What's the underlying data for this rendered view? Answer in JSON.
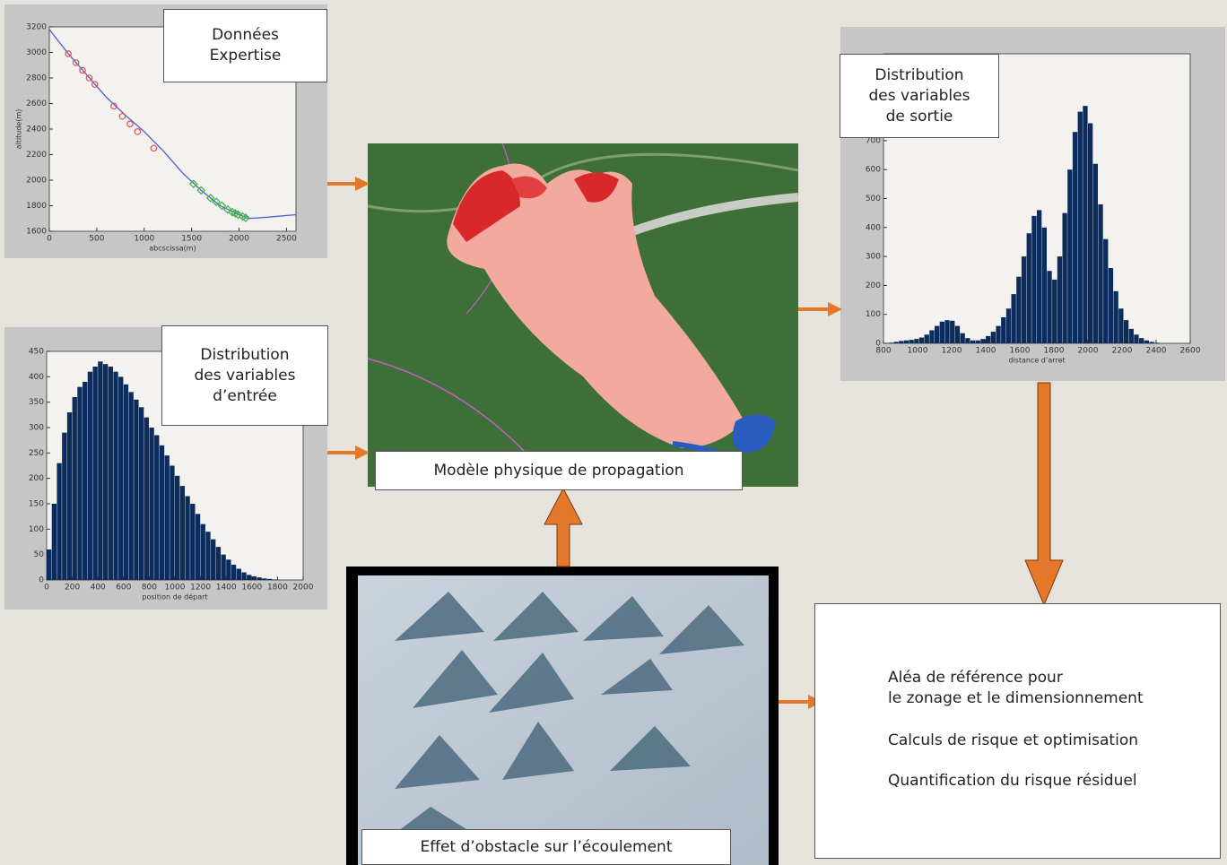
{
  "expertise_box": [
    "Données",
    "Expertise"
  ],
  "input_box": [
    "Distribution",
    "des variables",
    "d’entrée"
  ],
  "output_box": [
    "Distribution",
    "des variables",
    "de sortie"
  ],
  "model_label": "Modèle physique de propagation",
  "obstacle_label": "Effet d’obstacle sur l’écoulement",
  "results": [
    "Aléa de référence pour",
    "le zonage et le dimensionnement",
    "Calculs de risque et optimisation",
    "Quantification du risque résiduel"
  ],
  "charts": [
    {
      "type": "line",
      "xlabel": "abcscissa(m)",
      "ylabel": "altitude(m)",
      "xlim": [
        0,
        2600
      ],
      "ylim": [
        1600,
        3200
      ],
      "xticks": [
        0,
        500,
        1000,
        1500,
        2000,
        2500
      ],
      "yticks": [
        1600,
        1800,
        2000,
        2200,
        2400,
        2600,
        2800,
        3000,
        3200
      ],
      "series": [
        {
          "color": "#4a5fd0",
          "x": [
            0,
            200,
            400,
            600,
            800,
            1000,
            1200,
            1400,
            1600,
            1800,
            2000,
            2100,
            2300,
            2600
          ],
          "y": [
            3180,
            2990,
            2820,
            2650,
            2510,
            2380,
            2230,
            2060,
            1920,
            1800,
            1730,
            1700,
            1710,
            1730
          ]
        },
        {
          "color": "#e05050",
          "marker": "circle",
          "x": [
            200,
            280,
            350,
            420,
            480,
            680,
            770,
            850,
            930,
            1100
          ],
          "y": [
            2990,
            2920,
            2860,
            2800,
            2750,
            2580,
            2500,
            2440,
            2380,
            2250
          ]
        },
        {
          "color": "#40b040",
          "marker": "diamond",
          "x": [
            1520,
            1600,
            1700,
            1760,
            1820,
            1880,
            1930,
            1960,
            1990,
            2040,
            2070
          ],
          "y": [
            1970,
            1920,
            1860,
            1830,
            1800,
            1770,
            1750,
            1740,
            1730,
            1715,
            1705
          ]
        }
      ]
    },
    {
      "type": "histogram",
      "xlabel": "position de départ",
      "color": "#0b2c5c",
      "xlim": [
        0,
        2000
      ],
      "ylim": [
        0,
        450
      ],
      "xticks": [
        0,
        200,
        400,
        600,
        800,
        1000,
        1200,
        1400,
        1600,
        1800,
        2000
      ],
      "yticks": [
        0,
        50,
        100,
        150,
        200,
        250,
        300,
        350,
        400,
        450
      ],
      "bins": [
        0,
        40,
        80,
        120,
        160,
        200,
        240,
        280,
        320,
        360,
        400,
        440,
        480,
        520,
        560,
        600,
        640,
        680,
        720,
        760,
        800,
        840,
        880,
        920,
        960,
        1000,
        1040,
        1080,
        1120,
        1160,
        1200,
        1240,
        1280,
        1320,
        1360,
        1400,
        1440,
        1480,
        1520,
        1560,
        1600,
        1640,
        1680,
        1720,
        1760,
        1800,
        1840,
        1880,
        1920,
        1960,
        2000
      ],
      "values": [
        60,
        150,
        230,
        290,
        330,
        360,
        380,
        390,
        410,
        420,
        430,
        425,
        420,
        410,
        400,
        385,
        370,
        355,
        340,
        320,
        300,
        285,
        265,
        245,
        225,
        205,
        185,
        165,
        150,
        130,
        110,
        95,
        80,
        65,
        50,
        40,
        30,
        22,
        15,
        10,
        7,
        5,
        3,
        2,
        1,
        0,
        0,
        0,
        0,
        0
      ]
    },
    {
      "type": "histogram",
      "xlabel": "distance d’arret",
      "color": "#0b2c5c",
      "xlim": [
        800,
        2600
      ],
      "ylim": [
        0,
        1000
      ],
      "xticks": [
        800,
        1000,
        1200,
        1400,
        1600,
        1800,
        2000,
        2200,
        2400,
        2600
      ],
      "yticks": [
        0,
        100,
        200,
        300,
        400,
        500,
        600,
        700
      ],
      "bins": [
        800,
        830,
        860,
        890,
        920,
        950,
        980,
        1010,
        1040,
        1070,
        1100,
        1130,
        1160,
        1190,
        1220,
        1250,
        1280,
        1310,
        1340,
        1370,
        1400,
        1430,
        1460,
        1490,
        1520,
        1550,
        1580,
        1610,
        1640,
        1670,
        1700,
        1730,
        1760,
        1790,
        1820,
        1850,
        1880,
        1910,
        1940,
        1970,
        2000,
        2030,
        2060,
        2090,
        2120,
        2150,
        2180,
        2210,
        2240,
        2270,
        2300,
        2330,
        2360,
        2390,
        2420,
        2450,
        2480,
        2510,
        2540,
        2570,
        2600
      ],
      "values": [
        0,
        2,
        5,
        8,
        10,
        12,
        15,
        20,
        30,
        45,
        60,
        75,
        80,
        78,
        60,
        35,
        18,
        10,
        10,
        15,
        25,
        40,
        60,
        90,
        120,
        170,
        230,
        300,
        380,
        440,
        460,
        400,
        250,
        220,
        300,
        450,
        600,
        730,
        800,
        820,
        760,
        620,
        480,
        360,
        260,
        180,
        120,
        80,
        50,
        30,
        18,
        10,
        5,
        2,
        0,
        0,
        0,
        0,
        0,
        0
      ]
    }
  ]
}
